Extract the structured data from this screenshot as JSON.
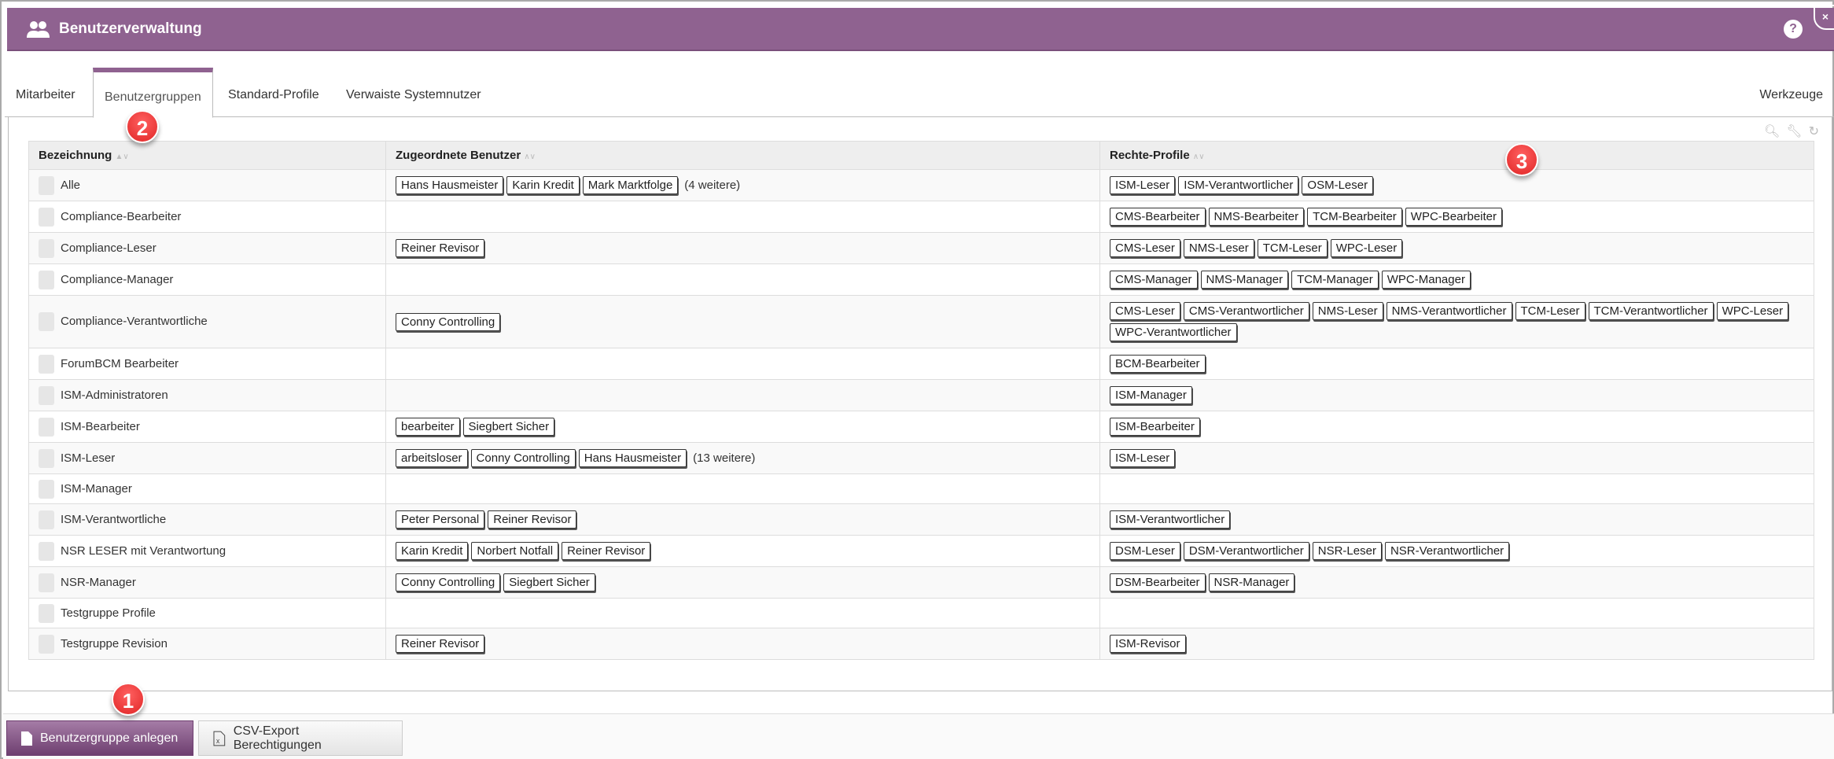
{
  "header": {
    "title": "Benutzerverwaltung",
    "icon": "users-icon",
    "help_label": "?",
    "close_label": "×"
  },
  "tabs": [
    {
      "label": "Mitarbeiter"
    },
    {
      "label": "Benutzergruppen",
      "active": true
    },
    {
      "label": "Standard-Profile"
    },
    {
      "label": "Verwaiste Systemnutzer"
    }
  ],
  "tools_label": "Werkzeuge",
  "table": {
    "columns": [
      "Bezeichnung",
      "Zugeordnete Benutzer",
      "Rechte-Profile"
    ],
    "rows": [
      {
        "name": "Alle",
        "users": [
          "Hans Hausmeister",
          "Karin Kredit",
          "Mark Marktfolge"
        ],
        "more": "(4 weitere)",
        "profiles": [
          "ISM-Leser",
          "ISM-Verantwortlicher",
          "OSM-Leser"
        ]
      },
      {
        "name": "Compliance-Bearbeiter",
        "users": [],
        "profiles": [
          "CMS-Bearbeiter",
          "NMS-Bearbeiter",
          "TCM-Bearbeiter",
          "WPC-Bearbeiter"
        ]
      },
      {
        "name": "Compliance-Leser",
        "users": [
          "Reiner Revisor"
        ],
        "profiles": [
          "CMS-Leser",
          "NMS-Leser",
          "TCM-Leser",
          "WPC-Leser"
        ]
      },
      {
        "name": "Compliance-Manager",
        "users": [],
        "profiles": [
          "CMS-Manager",
          "NMS-Manager",
          "TCM-Manager",
          "WPC-Manager"
        ]
      },
      {
        "name": "Compliance-Verantwortliche",
        "users": [
          "Conny Controlling"
        ],
        "profiles": [
          "CMS-Leser",
          "CMS-Verantwortlicher",
          "NMS-Leser",
          "NMS-Verantwortlicher",
          "TCM-Leser",
          "TCM-Verantwortlicher",
          "WPC-Leser",
          "WPC-Verantwortlicher"
        ]
      },
      {
        "name": "ForumBCM Bearbeiter",
        "users": [],
        "profiles": [
          "BCM-Bearbeiter"
        ]
      },
      {
        "name": "ISM-Administratoren",
        "users": [],
        "profiles": [
          "ISM-Manager"
        ]
      },
      {
        "name": "ISM-Bearbeiter",
        "users": [
          "bearbeiter",
          "Siegbert Sicher"
        ],
        "profiles": [
          "ISM-Bearbeiter"
        ]
      },
      {
        "name": "ISM-Leser",
        "users": [
          "arbeitsloser",
          "Conny Controlling",
          "Hans Hausmeister"
        ],
        "more": "(13 weitere)",
        "profiles": [
          "ISM-Leser"
        ]
      },
      {
        "name": "ISM-Manager",
        "users": [],
        "profiles": []
      },
      {
        "name": "ISM-Verantwortliche",
        "users": [
          "Peter Personal",
          "Reiner Revisor"
        ],
        "profiles": [
          "ISM-Verantwortlicher"
        ]
      },
      {
        "name": "NSR LESER mit Verantwortung",
        "users": [
          "Karin Kredit",
          "Norbert Notfall",
          "Reiner Revisor"
        ],
        "profiles": [
          "DSM-Leser",
          "DSM-Verantwortlicher",
          "NSR-Leser",
          "NSR-Verantwortlicher"
        ]
      },
      {
        "name": "NSR-Manager",
        "users": [
          "Conny Controlling",
          "Siegbert Sicher"
        ],
        "profiles": [
          "DSM-Bearbeiter",
          "NSR-Manager"
        ]
      },
      {
        "name": "Testgruppe Profile",
        "users": [],
        "profiles": []
      },
      {
        "name": "Testgruppe Revision",
        "users": [
          "Reiner Revisor"
        ],
        "profiles": [
          "ISM-Revisor"
        ]
      }
    ]
  },
  "footer": {
    "create_label": "Benutzergruppe anlegen",
    "export_label": "CSV-Export Berechtigungen"
  },
  "markers": [
    "1",
    "2",
    "3"
  ],
  "colors": {
    "brand": "#8f6290",
    "marker": "#e53030"
  }
}
